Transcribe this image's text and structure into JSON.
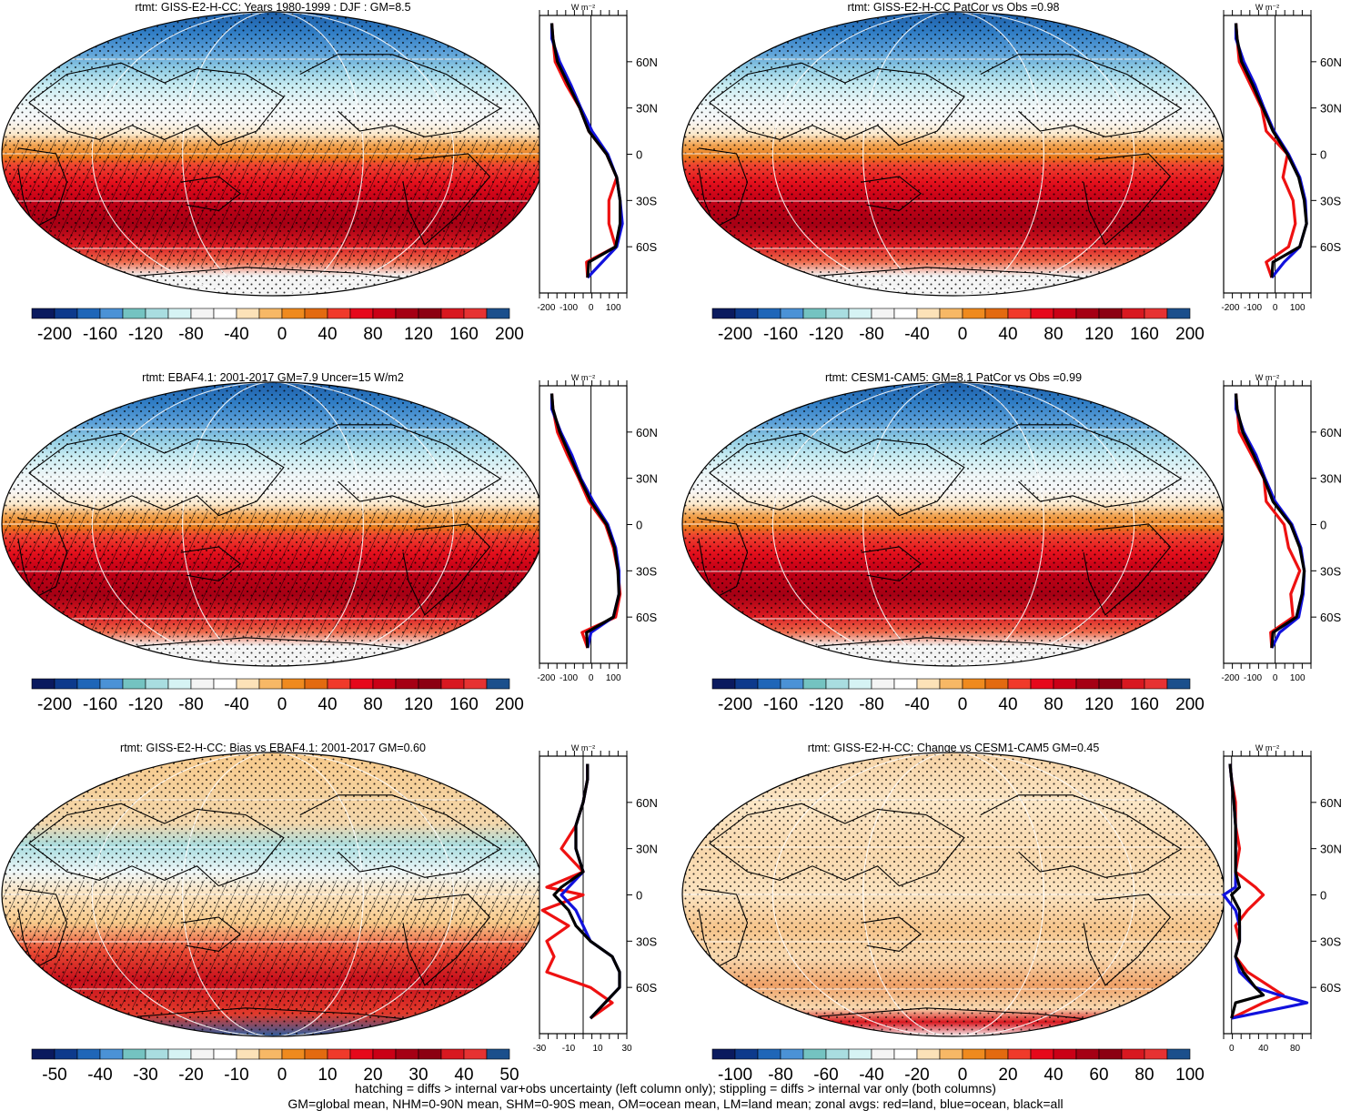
{
  "variable": "rtmt",
  "footer": {
    "line1": "hatching = diffs > internal var+obs uncertainty (left column only); stippling = diffs > internal var only (both columns)",
    "line2": "GM=global mean, NHM=0-90N mean, SHM=0-90S mean, OM=ocean mean, LM=land mean; zonal avgs: red=land, blue=ocean, black=all"
  },
  "profile_unit": "W m⁻²",
  "lat_ticks": [
    "60N",
    "30N",
    "0",
    "30S",
    "60S"
  ],
  "colors": {
    "land": "#ee1111",
    "ocean": "#1111dd",
    "all": "#000000",
    "colorbar_full": [
      "#0a1a5e",
      "#0d3a8c",
      "#1f66b8",
      "#4b92d6",
      "#74c3c1",
      "#a9dde0",
      "#d6f3f4",
      "#f4f4f4",
      "#ffffff",
      "#fce2b8",
      "#f7b866",
      "#ef8a1e",
      "#e36a10",
      "#f03a2a",
      "#e6081b",
      "#ca0016",
      "#a50014",
      "#8c0012",
      "#d81820",
      "#e63232",
      "#1b4f8c"
    ]
  },
  "chart_data": [
    {
      "id": "giss-clim",
      "type": "map+zonal-profile",
      "title": "rtmt: GISS-E2-H-CC: Years 1980-1999 : DJF : GM=8.5",
      "colorbar_labels": [
        "-200",
        "-160",
        "-120",
        "-80",
        "-40",
        "0",
        "40",
        "80",
        "120",
        "160",
        "200"
      ],
      "profile_xticks": [
        "-200",
        "-100",
        "0",
        "100"
      ],
      "profile_xlim": [
        -230,
        160
      ],
      "latitudes": [
        85,
        75,
        60,
        45,
        30,
        15,
        0,
        -15,
        -30,
        -45,
        -60,
        -70,
        -80
      ],
      "series": [
        {
          "name": "land",
          "values": [
            -175,
            -170,
            -160,
            -110,
            -50,
            -10,
            70,
            115,
            80,
            80,
            110,
            -20,
            -15
          ]
        },
        {
          "name": "ocean",
          "values": [
            -175,
            -175,
            -140,
            -90,
            -45,
            5,
            75,
            115,
            130,
            140,
            115,
            50,
            -15
          ]
        },
        {
          "name": "all",
          "values": [
            -175,
            -170,
            -150,
            -100,
            -50,
            -10,
            70,
            115,
            130,
            130,
            110,
            -10,
            -15
          ]
        }
      ]
    },
    {
      "id": "giss-patcor",
      "type": "map+zonal-profile",
      "title": "rtmt: GISS-E2-H-CC PatCor vs Obs =0.98",
      "colorbar_labels": [
        "-200",
        "-160",
        "-120",
        "-80",
        "-40",
        "0",
        "40",
        "80",
        "120",
        "160",
        "200"
      ],
      "profile_xticks": [
        "-200",
        "-100",
        "0",
        "100"
      ],
      "profile_xlim": [
        -230,
        160
      ],
      "latitudes": [
        85,
        75,
        60,
        45,
        30,
        15,
        0,
        -15,
        -30,
        -45,
        -60,
        -70,
        -80
      ],
      "series": [
        {
          "name": "land",
          "values": [
            -175,
            -170,
            -160,
            -110,
            -60,
            -40,
            55,
            35,
            80,
            90,
            60,
            -40,
            -15
          ]
        },
        {
          "name": "ocean",
          "values": [
            -175,
            -175,
            -140,
            -90,
            -50,
            -5,
            60,
            110,
            135,
            140,
            110,
            40,
            -15
          ]
        },
        {
          "name": "all",
          "values": [
            -175,
            -170,
            -150,
            -100,
            -55,
            -10,
            55,
            105,
            130,
            140,
            110,
            -10,
            -15
          ]
        }
      ]
    },
    {
      "id": "ebaf",
      "type": "map+zonal-profile",
      "title": "rtmt: EBAF4.1: 2001-2017 GM=7.9 Uncer=15 W/m2",
      "colorbar_labels": [
        "-200",
        "-160",
        "-120",
        "-80",
        "-40",
        "0",
        "40",
        "80",
        "120",
        "160",
        "200"
      ],
      "profile_xticks": [
        "-200",
        "-100",
        "0",
        "100"
      ],
      "profile_xlim": [
        -230,
        160
      ],
      "latitudes": [
        85,
        75,
        60,
        45,
        30,
        15,
        0,
        -15,
        -30,
        -45,
        -60,
        -70,
        -80
      ],
      "series": [
        {
          "name": "land",
          "values": [
            -175,
            -170,
            -150,
            -105,
            -55,
            -10,
            65,
            100,
            120,
            130,
            110,
            -40,
            -15
          ]
        },
        {
          "name": "ocean",
          "values": [
            -175,
            -175,
            -135,
            -85,
            -45,
            10,
            75,
            110,
            125,
            125,
            100,
            0,
            -15
          ]
        },
        {
          "name": "all",
          "values": [
            -175,
            -170,
            -140,
            -95,
            -50,
            0,
            70,
            105,
            120,
            125,
            100,
            -20,
            -15
          ]
        }
      ]
    },
    {
      "id": "cesm",
      "type": "map+zonal-profile",
      "title": "rtmt: CESM1-CAM5: GM=8.1 PatCor vs Obs =0.99",
      "colorbar_labels": [
        "-200",
        "-160",
        "-120",
        "-80",
        "-40",
        "0",
        "40",
        "80",
        "120",
        "160",
        "200"
      ],
      "profile_xticks": [
        "-200",
        "-100",
        "0",
        "100"
      ],
      "profile_xlim": [
        -230,
        160
      ],
      "latitudes": [
        85,
        75,
        60,
        45,
        30,
        15,
        0,
        -15,
        -30,
        -45,
        -60,
        -70,
        -80
      ],
      "series": [
        {
          "name": "land",
          "values": [
            -175,
            -170,
            -160,
            -105,
            -50,
            -40,
            40,
            60,
            110,
            70,
            80,
            -20,
            -15
          ]
        },
        {
          "name": "ocean",
          "values": [
            -175,
            -175,
            -140,
            -85,
            -45,
            0,
            75,
            115,
            130,
            125,
            105,
            20,
            -15
          ]
        },
        {
          "name": "all",
          "values": [
            -175,
            -170,
            -145,
            -95,
            -50,
            -10,
            70,
            110,
            130,
            120,
            95,
            -10,
            -15
          ]
        }
      ]
    },
    {
      "id": "giss-bias",
      "type": "map+zonal-profile",
      "title": "rtmt: GISS-E2-H-CC: Bias vs EBAF4.1: 2001-2017 GM=0.60",
      "colorbar_labels": [
        "-50",
        "-40",
        "-30",
        "-20",
        "-10",
        "0",
        "10",
        "20",
        "30",
        "40",
        "50"
      ],
      "profile_xticks": [
        "-30",
        "-10",
        "10",
        "30"
      ],
      "profile_xlim": [
        -30,
        30
      ],
      "latitudes": [
        85,
        75,
        60,
        45,
        30,
        15,
        5,
        0,
        -10,
        -20,
        -30,
        -40,
        -50,
        -60,
        -70,
        -80
      ],
      "series": [
        {
          "name": "land",
          "values": [
            3,
            3,
            0,
            -5,
            -15,
            0,
            -25,
            0,
            -28,
            -10,
            -25,
            -20,
            -25,
            5,
            20,
            5
          ]
        },
        {
          "name": "ocean",
          "values": [
            3,
            3,
            0,
            -5,
            -5,
            0,
            -10,
            -15,
            -5,
            0,
            5,
            20,
            25,
            25,
            15,
            5
          ]
        },
        {
          "name": "all",
          "values": [
            3,
            3,
            0,
            -5,
            -5,
            0,
            -15,
            -20,
            -10,
            -5,
            5,
            20,
            25,
            25,
            15,
            5
          ]
        }
      ]
    },
    {
      "id": "giss-change",
      "type": "map+zonal-profile",
      "title": "rtmt: GISS-E2-H-CC: Change vs CESM1-CAM5 GM=0.45",
      "colorbar_labels": [
        "-100",
        "-80",
        "-60",
        "-40",
        "-20",
        "0",
        "20",
        "40",
        "60",
        "80",
        "100"
      ],
      "profile_xticks": [
        "0",
        "40",
        "80"
      ],
      "profile_xlim": [
        -10,
        100
      ],
      "latitudes": [
        85,
        75,
        60,
        45,
        30,
        15,
        5,
        0,
        -10,
        -20,
        -30,
        -40,
        -50,
        -60,
        -65,
        -70,
        -80
      ],
      "series": [
        {
          "name": "land",
          "values": [
            -2,
            0,
            5,
            5,
            10,
            5,
            30,
            40,
            20,
            5,
            10,
            5,
            20,
            50,
            65,
            40,
            0
          ]
        },
        {
          "name": "ocean",
          "values": [
            -2,
            0,
            3,
            5,
            5,
            5,
            5,
            -10,
            5,
            10,
            10,
            5,
            10,
            30,
            60,
            95,
            0
          ]
        },
        {
          "name": "all",
          "values": [
            -2,
            0,
            3,
            5,
            5,
            5,
            10,
            0,
            10,
            10,
            10,
            5,
            15,
            30,
            40,
            5,
            0
          ]
        }
      ]
    }
  ]
}
